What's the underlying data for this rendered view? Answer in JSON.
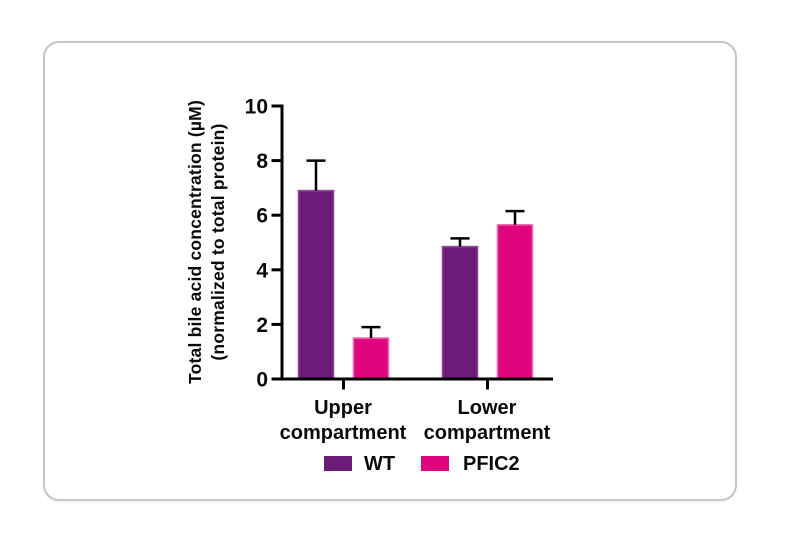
{
  "page": {
    "background_color": "#ffffff"
  },
  "card": {
    "background_color": "#ffffff",
    "border_color": "#c6c6c6"
  },
  "chart_data": {
    "type": "bar",
    "title": "",
    "ylabel_line1": "Total bile acid concentration (µM)",
    "ylabel_line2": "(normalized to total protein)",
    "xlabel": "",
    "categories": [
      "Upper compartment",
      "Lower compartment"
    ],
    "categories_display": [
      {
        "line1": "Upper",
        "line2": "compartment"
      },
      {
        "line1": "Lower",
        "line2": "compartment"
      }
    ],
    "ylim": [
      0,
      10
    ],
    "yticks": [
      0,
      2,
      4,
      6,
      8,
      10
    ],
    "grid": false,
    "legend_position": "bottom",
    "error_bars": "upper only, caps",
    "series": [
      {
        "name": "WT",
        "color": "#6A1C78",
        "edge_color": "#94479D",
        "values": [
          6.9,
          4.85
        ],
        "errors_plus": [
          1.1,
          0.3
        ]
      },
      {
        "name": "PFIC2",
        "color": "#E0047F",
        "edge_color": "#EE6FB0",
        "values": [
          1.5,
          5.65
        ],
        "errors_plus": [
          0.4,
          0.5
        ]
      }
    ],
    "axis_color": "#000000",
    "error_bar_color": "#000000",
    "tick_label_color": "#0a0a0a"
  }
}
